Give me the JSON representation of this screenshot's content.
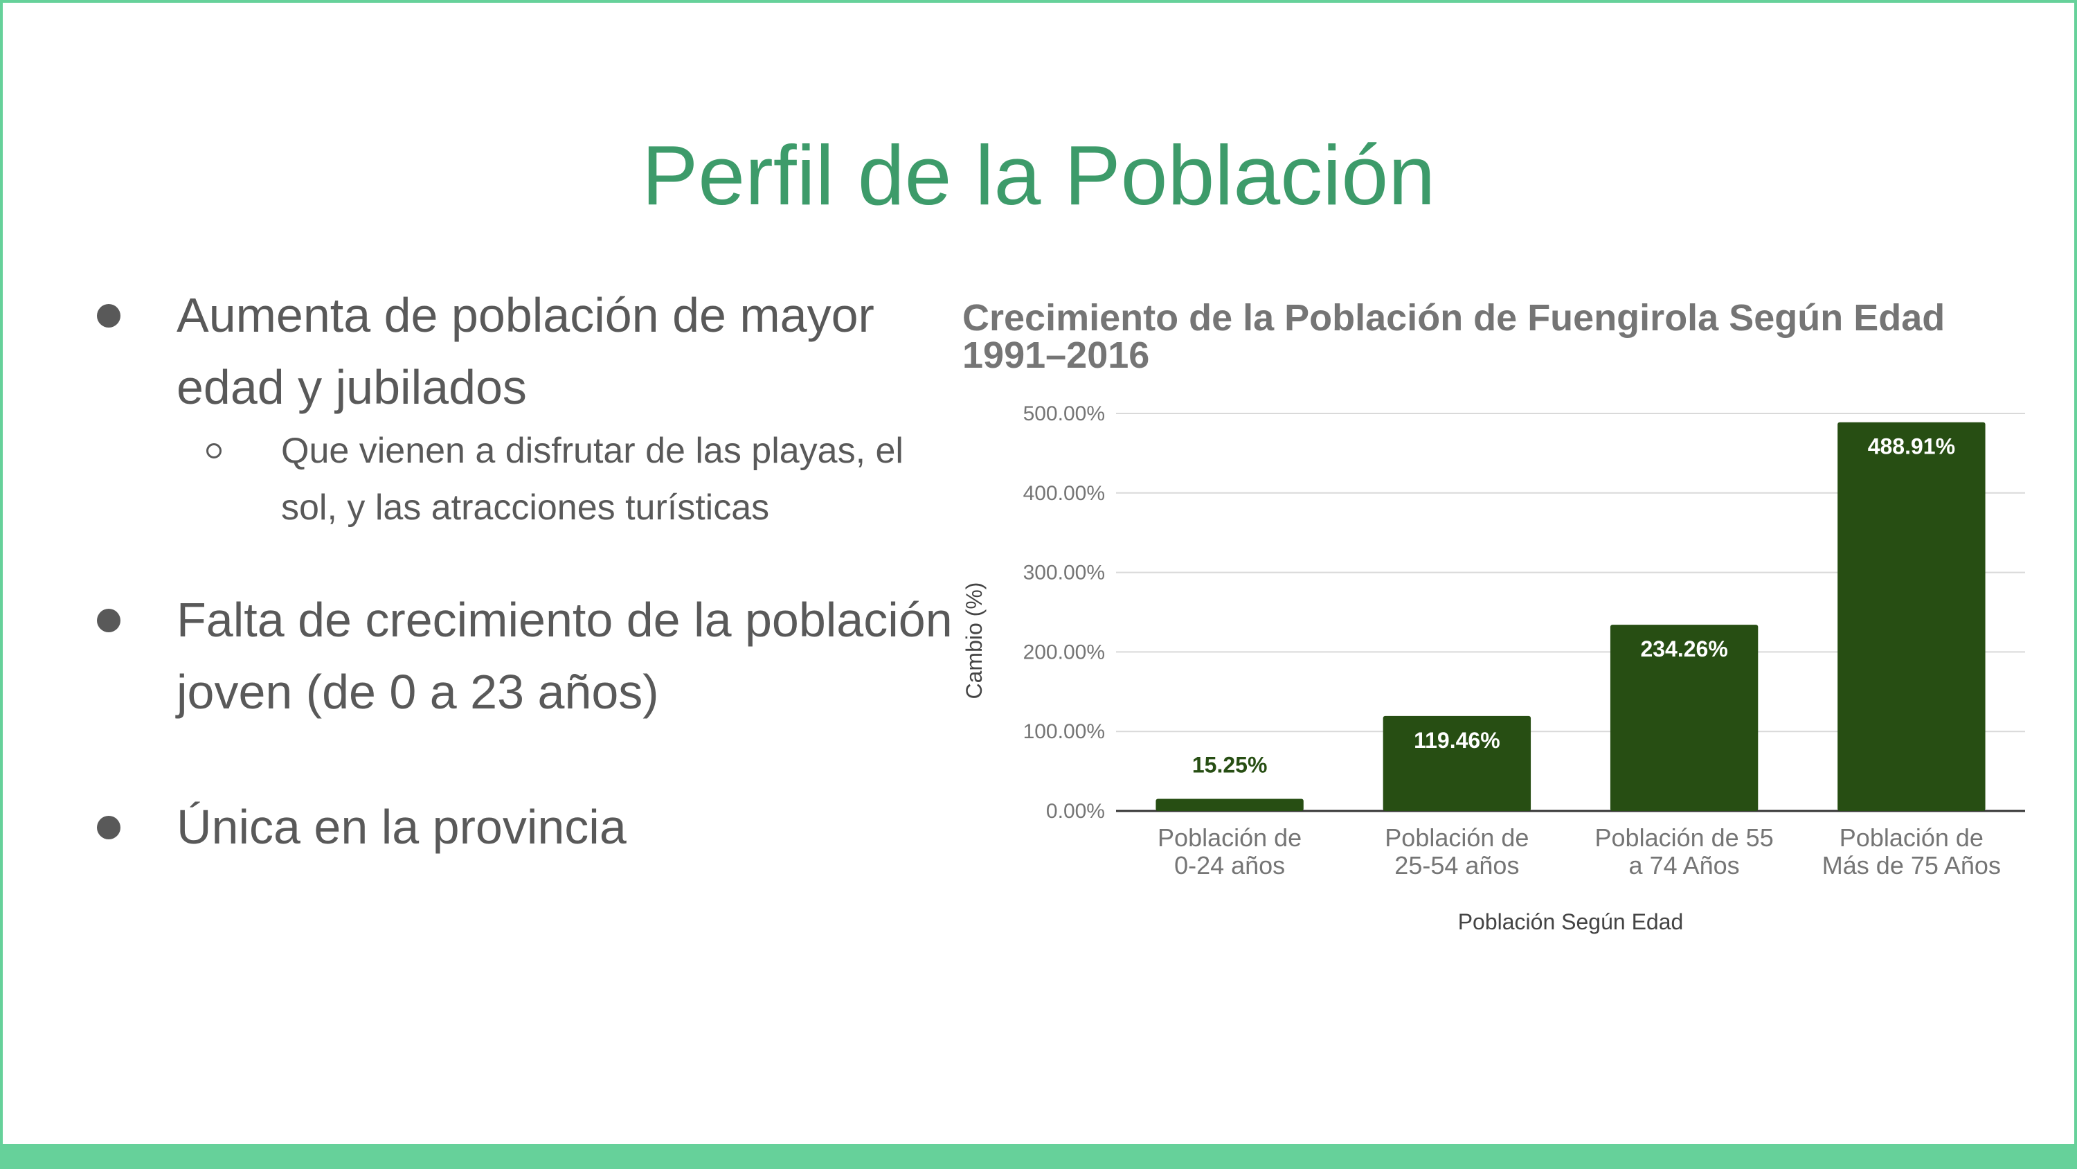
{
  "slide": {
    "title": "Perfil de la Población",
    "bullets": [
      {
        "text": "Aumenta de población de mayor edad y jubilados",
        "sub": "Que vienen a disfrutar de las playas, el sol, y las atracciones turísticas"
      },
      {
        "text": "Falta de crecimiento de la población joven (de 0 a 23 años)"
      },
      {
        "text": "Única en la provincia"
      }
    ]
  },
  "colors": {
    "accent": "#3d9b6a",
    "frame": "#66d19a",
    "bar": "#274e13",
    "text": "#595959"
  },
  "chart_data": {
    "type": "bar",
    "title": "Crecimiento de la Población de Fuengirola Según Edad 1991–2016",
    "xlabel": "Población Según Edad",
    "ylabel": "Cambio (%)",
    "categories": [
      [
        "Población de",
        "0-24 años"
      ],
      [
        "Población de",
        "25-54 años"
      ],
      [
        "Población de 55",
        "a 74 Años"
      ],
      [
        "Población de",
        "Más de 75 Años"
      ]
    ],
    "values": [
      15.25,
      119.46,
      234.26,
      488.91
    ],
    "data_labels": [
      "15.25%",
      "119.46%",
      "234.26%",
      "488.91%"
    ],
    "yticks": [
      "0.00%",
      "100.00%",
      "200.00%",
      "300.00%",
      "400.00%",
      "500.00%"
    ],
    "ylim": [
      0,
      500
    ],
    "grid": true,
    "legend": "none"
  }
}
